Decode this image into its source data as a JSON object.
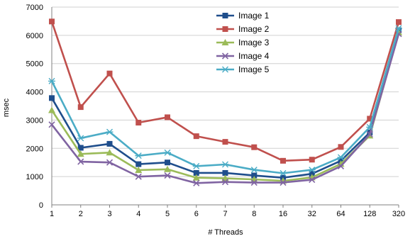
{
  "chart_data": {
    "type": "line",
    "title": "",
    "xlabel": "# Threads",
    "ylabel": "msec",
    "categories": [
      "1",
      "2",
      "3",
      "4",
      "5",
      "6",
      "7",
      "8",
      "16",
      "32",
      "64",
      "128",
      "320"
    ],
    "ylim": [
      0,
      7000
    ],
    "yticks": [
      0,
      1000,
      2000,
      3000,
      4000,
      5000,
      6000,
      7000
    ],
    "grid": true,
    "legend_position": "top-right",
    "series": [
      {
        "name": "Image 1",
        "color": "#1f4e8c",
        "marker": "square",
        "values": [
          3780,
          2020,
          2160,
          1440,
          1500,
          1130,
          1130,
          1040,
          960,
          1100,
          1560,
          2560,
          6180
        ]
      },
      {
        "name": "Image 2",
        "color": "#c0504d",
        "marker": "square",
        "values": [
          6490,
          3460,
          4650,
          2910,
          3100,
          2430,
          2230,
          2040,
          1560,
          1600,
          2050,
          3050,
          6470
        ]
      },
      {
        "name": "Image 3",
        "color": "#9bbb59",
        "marker": "triangle",
        "values": [
          3350,
          1800,
          1850,
          1230,
          1260,
          960,
          940,
          900,
          850,
          970,
          1450,
          2450,
          6100
        ]
      },
      {
        "name": "Image 4",
        "color": "#8064a2",
        "marker": "x",
        "values": [
          2840,
          1530,
          1500,
          1000,
          1040,
          770,
          810,
          790,
          790,
          890,
          1370,
          2500,
          6050
        ]
      },
      {
        "name": "Image 5",
        "color": "#4bacc6",
        "marker": "star",
        "values": [
          4380,
          2360,
          2580,
          1740,
          1850,
          1370,
          1430,
          1240,
          1120,
          1240,
          1680,
          2750,
          6250
        ]
      }
    ]
  }
}
